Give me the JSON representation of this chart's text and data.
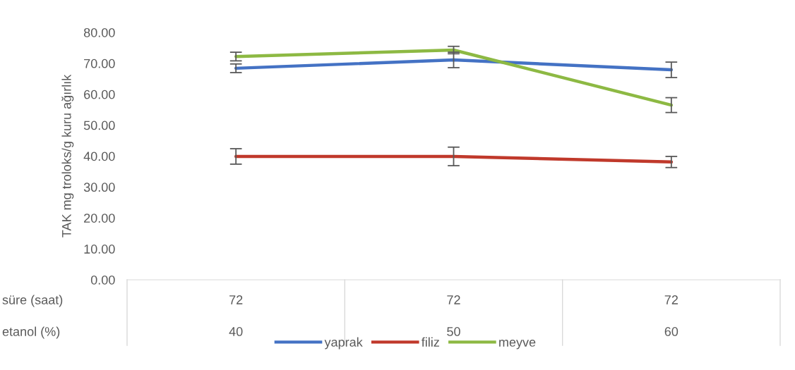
{
  "chart_data": {
    "type": "line",
    "ylabel": "TAK mg troloks/g kuru ağırlık",
    "categories": [
      "72\n40",
      "72\n50",
      "72\n60"
    ],
    "series": [
      {
        "name": "yaprak",
        "color": "#4472c4",
        "values": [
          68.4,
          71.1,
          67.9
        ],
        "errors": [
          1.4,
          2.5,
          2.5
        ]
      },
      {
        "name": "filiz",
        "color": "#c0392b",
        "values": [
          39.9,
          39.9,
          38.1
        ],
        "errors": [
          2.5,
          3.0,
          1.8
        ]
      },
      {
        "name": "meyve",
        "color": "#8db943",
        "values": [
          72.2,
          74.3,
          56.5
        ],
        "errors": [
          1.4,
          1.2,
          2.4
        ]
      }
    ],
    "ylim": [
      0,
      80
    ],
    "yticks": [
      {
        "value": 0,
        "label": "0.00"
      },
      {
        "value": 10,
        "label": "10.00"
      },
      {
        "value": 20,
        "label": "20.00"
      },
      {
        "value": 30,
        "label": "30.00"
      },
      {
        "value": 40,
        "label": "40.00"
      },
      {
        "value": 50,
        "label": "50.00"
      },
      {
        "value": 60,
        "label": "60.00"
      },
      {
        "value": 70,
        "label": "70.00"
      },
      {
        "value": 80,
        "label": "80.00"
      }
    ],
    "annotations": [
      "süre (saat)",
      "etanol (%)"
    ],
    "grid": false,
    "legend": "bottom",
    "marker": "none",
    "line_style": "solid"
  }
}
